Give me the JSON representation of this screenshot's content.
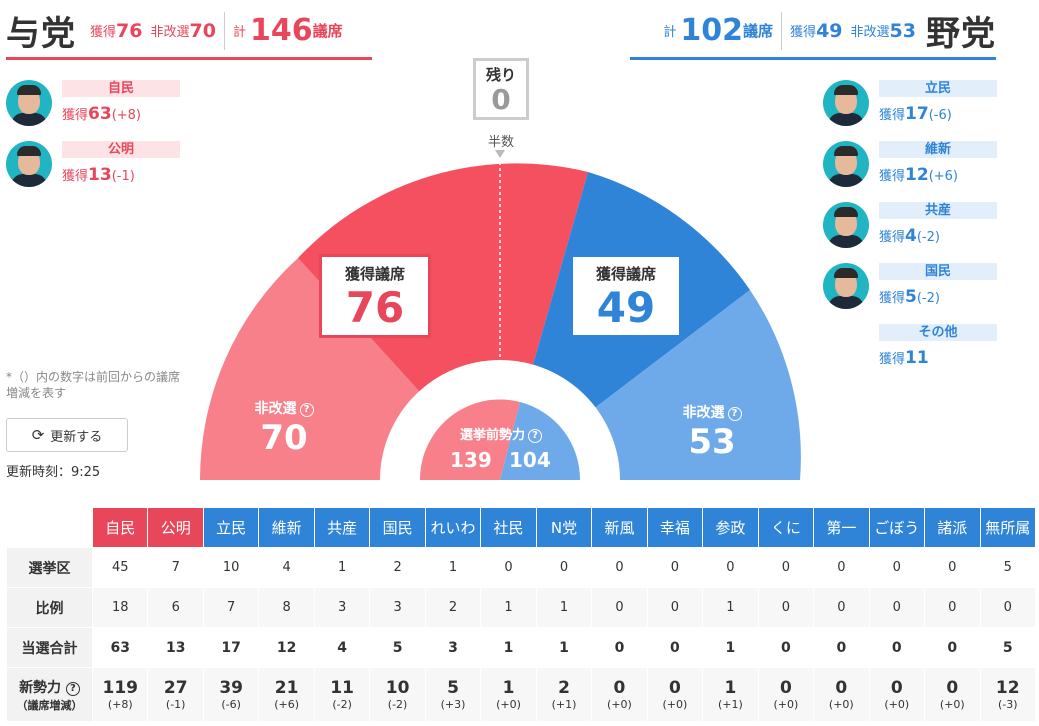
{
  "ruling": {
    "title": "与党",
    "won_label": "獲得",
    "won": "76",
    "unelected_label": "非改選",
    "unelected": "70",
    "total_label": "計",
    "total": "146",
    "seats_suffix": "議席"
  },
  "opposition": {
    "title": "野党",
    "total_label": "計",
    "total": "102",
    "seats_suffix": "議席",
    "won_label": "獲得",
    "won": "49",
    "unelected_label": "非改選",
    "unelected": "53"
  },
  "ruling_parties": [
    {
      "name": "自民",
      "won_label": "獲得",
      "won": "63",
      "diff": "(+8)"
    },
    {
      "name": "公明",
      "won_label": "獲得",
      "won": "13",
      "diff": "(-1)"
    }
  ],
  "opposition_parties": [
    {
      "name": "立民",
      "won_label": "獲得",
      "won": "17",
      "diff": "(-6)"
    },
    {
      "name": "維新",
      "won_label": "獲得",
      "won": "12",
      "diff": "(+6)"
    },
    {
      "name": "共産",
      "won_label": "獲得",
      "won": "4",
      "diff": "(-2)"
    },
    {
      "name": "国民",
      "won_label": "獲得",
      "won": "5",
      "diff": "(-2)"
    },
    {
      "name": "その他",
      "won_label": "獲得",
      "won": "11",
      "diff": ""
    }
  ],
  "remaining": {
    "label": "残り",
    "value": "0"
  },
  "majority_label": "半数",
  "chart": {
    "won_label": "獲得議席",
    "ruling_won": "76",
    "opposition_won": "49",
    "unelected_label": "非改選",
    "ruling_unelected": "70",
    "opposition_unelected": "53",
    "pre_label": "選挙前勢力",
    "ruling_pre": "139",
    "opposition_pre": "104",
    "colors": {
      "ruling_won": "#f5505f",
      "ruling_unelected": "#f7808a",
      "opposition_won": "#2f84d8",
      "opposition_unelected": "#6eaaea"
    }
  },
  "note": "*（）内の数字は前回からの議席増減を表す",
  "refresh_label": "更新する",
  "updated_label": "更新時刻：9:25",
  "table": {
    "headers": [
      "自民",
      "公明",
      "立民",
      "維新",
      "共産",
      "国民",
      "れいわ",
      "社民",
      "N党",
      "新風",
      "幸福",
      "参政",
      "くに",
      "第一",
      "ごぼう",
      "諸派",
      "無所属"
    ],
    "rows": [
      {
        "label": "選挙区",
        "values": [
          "45",
          "7",
          "10",
          "4",
          "1",
          "2",
          "1",
          "0",
          "0",
          "0",
          "0",
          "0",
          "0",
          "0",
          "0",
          "0",
          "5"
        ]
      },
      {
        "label": "比例",
        "values": [
          "18",
          "6",
          "7",
          "8",
          "3",
          "3",
          "2",
          "1",
          "1",
          "0",
          "0",
          "1",
          "0",
          "0",
          "0",
          "0",
          "0"
        ]
      },
      {
        "label": "当選合計",
        "values": [
          "63",
          "13",
          "17",
          "12",
          "4",
          "5",
          "3",
          "1",
          "1",
          "0",
          "0",
          "1",
          "0",
          "0",
          "0",
          "0",
          "5"
        ]
      }
    ],
    "strength": {
      "label": "新勢力",
      "sub_label": "（議席増減）",
      "values": [
        "119",
        "27",
        "39",
        "21",
        "11",
        "10",
        "5",
        "1",
        "2",
        "0",
        "0",
        "1",
        "0",
        "0",
        "0",
        "0",
        "12"
      ],
      "diffs": [
        "(+8)",
        "(-1)",
        "(-6)",
        "(+6)",
        "(-2)",
        "(-2)",
        "(+3)",
        "(+0)",
        "(+1)",
        "(+0)",
        "(+0)",
        "(+1)",
        "(+0)",
        "(+0)",
        "(+0)",
        "(+0)",
        "(-3)"
      ]
    }
  }
}
